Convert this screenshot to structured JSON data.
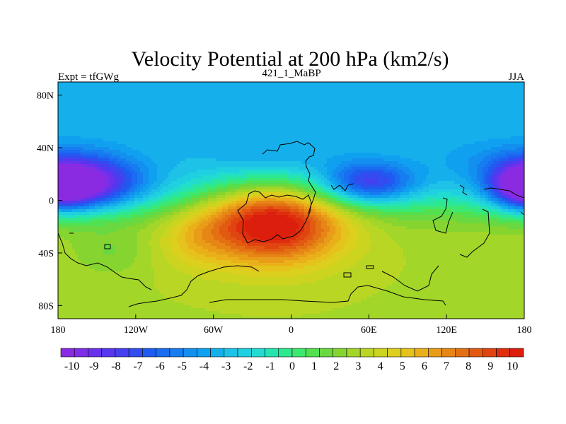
{
  "chart_data": {
    "type": "heatmap",
    "title": "Velocity Potential at 200 hPa (km2/s)",
    "subtitle_left": "Expt = tfGWg",
    "subtitle_center": "421_1_MaBP",
    "subtitle_right": "JJA",
    "x_ticks": [
      "180",
      "120W",
      "60W",
      "0",
      "60E",
      "120E",
      "180"
    ],
    "x_tick_values": [
      -180,
      -120,
      -60,
      0,
      60,
      120,
      180
    ],
    "y_ticks": [
      "80N",
      "40N",
      "0",
      "40S",
      "80S"
    ],
    "y_tick_values": [
      80,
      40,
      0,
      -40,
      -80
    ],
    "xlim": [
      -180,
      180
    ],
    "ylim": [
      -90,
      90
    ],
    "colorbar": {
      "labels": [
        "-10",
        "-9",
        "-8",
        "-7",
        "-6",
        "-5",
        "-4",
        "-3",
        "-2",
        "-1",
        "0",
        "1",
        "2",
        "3",
        "4",
        "5",
        "6",
        "7",
        "8",
        "9",
        "10"
      ],
      "min": -11,
      "max": 11,
      "colors": [
        "#8a2be2",
        "#7f2ee8",
        "#6b32ec",
        "#5836ef",
        "#4440f0",
        "#324cf0",
        "#1f5bf0",
        "#1a6cf0",
        "#167df0",
        "#138ff0",
        "#10a0f0",
        "#15b0ec",
        "#1dc2e6",
        "#1fd0e0",
        "#22dcd0",
        "#26e4b0",
        "#2ee890",
        "#3de870",
        "#52e050",
        "#6ad840",
        "#86d430",
        "#a2d628",
        "#bad624",
        "#ccd420",
        "#dccf1e",
        "#e6c21c",
        "#eab01a",
        "#e89c18",
        "#e68616",
        "#e47014",
        "#e25a12",
        "#e04410",
        "#de2e0e",
        "#dc1e0c"
      ]
    },
    "features": [
      {
        "name": "high_south_atlantic",
        "lon": -15,
        "lat": -15,
        "amplitude": 9.5
      },
      {
        "name": "low_central_pacific",
        "lon": -158,
        "lat": 12,
        "amplitude": -8.0
      },
      {
        "name": "low_arabia",
        "lon": 60,
        "lat": 13,
        "amplitude": -6.0
      },
      {
        "name": "low_west_pacific",
        "lon": 180,
        "lat": 10,
        "amplitude": -7.0
      },
      {
        "name": "southern_plateau",
        "value": 3.2
      },
      {
        "name": "northern_background",
        "value": -3.3
      }
    ]
  }
}
